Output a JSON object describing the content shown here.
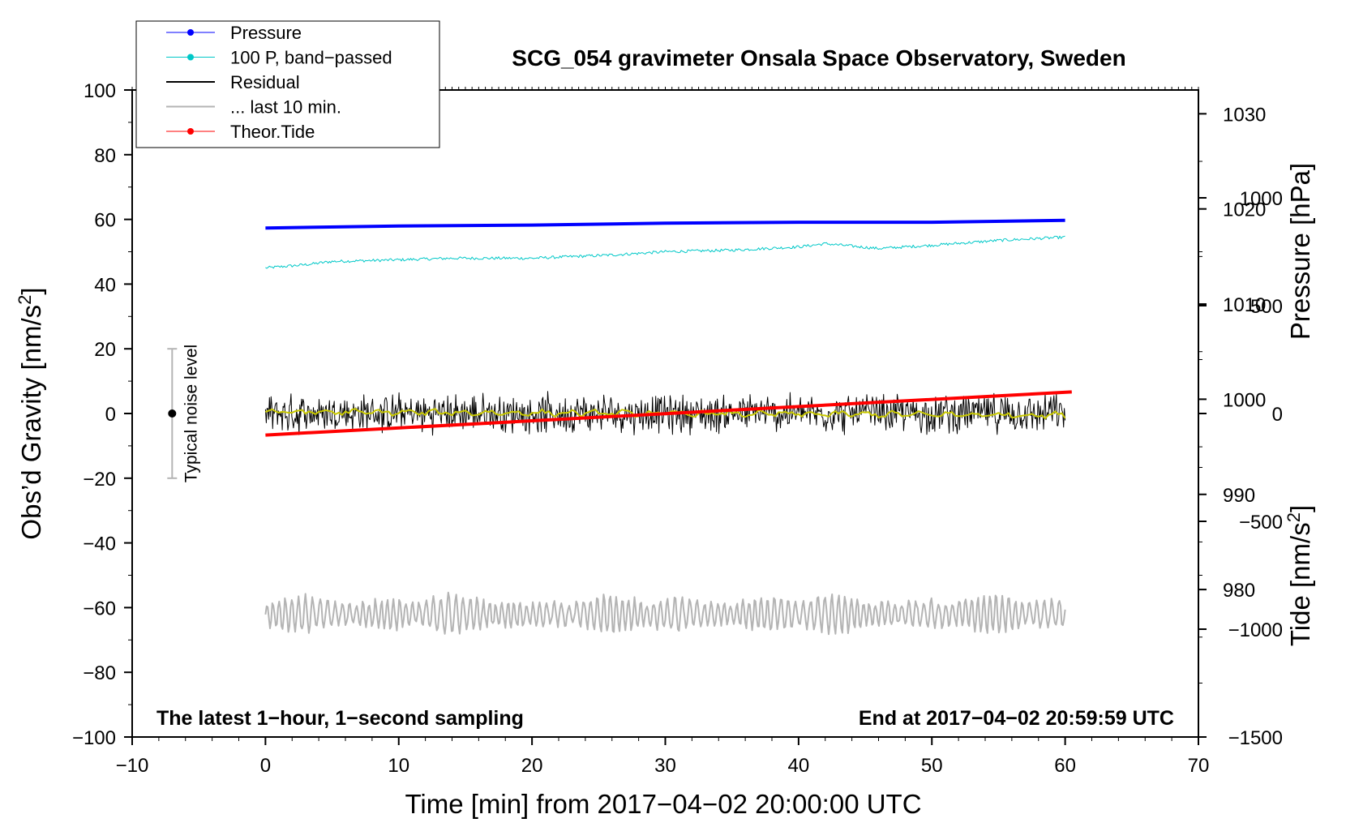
{
  "chart_data": {
    "type": "line",
    "title": "SCG_054 gravimeter Onsala Space Observatory, Sweden",
    "xlabel": "Time [min] from 2017−04−02 20:00:00 UTC",
    "ylabel": "Obs’d Gravity [nm/s²]",
    "ylabel_main": "Obs’d Gravity [nm/s",
    "ylabel_sup": "2",
    "ylabel_end": "]",
    "y2label_pressure": "Pressure [hPa]",
    "y3label_main": "Tide [nm/s",
    "y3label_sup": "2",
    "y3label_end": "]",
    "xlim": [
      -10,
      70
    ],
    "ylim": [
      -100,
      100
    ],
    "pressure_lim": [
      964.5,
      1032.5
    ],
    "tide_lim": [
      -1500,
      1500
    ],
    "x_ticks": [
      "−10",
      "0",
      "10",
      "20",
      "30",
      "40",
      "50",
      "60",
      "70"
    ],
    "x_tick_values": [
      -10,
      0,
      10,
      20,
      30,
      40,
      50,
      60,
      70
    ],
    "y_ticks": [
      "100",
      "80",
      "60",
      "40",
      "20",
      "0",
      "−20",
      "−40",
      "−60",
      "−80",
      "−100"
    ],
    "y_tick_values": [
      100,
      80,
      60,
      40,
      20,
      0,
      -20,
      -40,
      -60,
      -80,
      -100
    ],
    "pressure_ticks": [
      "1030",
      "1020",
      "1010",
      "1000",
      "990",
      "980"
    ],
    "pressure_tick_values": [
      1030,
      1020,
      1010,
      1000,
      990,
      980
    ],
    "tide_ticks": [
      "1000",
      "500",
      "0",
      "−500",
      "−1000",
      "−1500"
    ],
    "tide_tick_values": [
      1000,
      500,
      0,
      -500,
      -1000,
      -1500
    ],
    "legend": [
      {
        "label": "Pressure",
        "color": "#0000ff",
        "marker": true
      },
      {
        "label": "100 P, band−passed",
        "color": "#00c8c8",
        "marker": true
      },
      {
        "label": "Residual",
        "color": "#000000",
        "marker": false
      },
      {
        "label": "... last 10 min.",
        "color": "#b4b4b4",
        "marker": false
      },
      {
        "label": "Theor.Tide",
        "color": "#ff0000",
        "marker": true
      }
    ],
    "legend_placement": "top-left",
    "noise_label": "Typical noise level",
    "noise_range": [
      -20,
      20
    ],
    "noise_x": -7,
    "note_left": "The latest 1−hour, 1−second sampling",
    "note_right": "End at 2017−04−02 20:59:59 UTC",
    "series": [
      {
        "name": "Pressure",
        "axis": "pressure",
        "color": "#0000ff",
        "x": [
          0,
          10,
          20,
          30,
          40,
          50,
          60
        ],
        "values": [
          1018.0,
          1018.2,
          1018.3,
          1018.5,
          1018.6,
          1018.6,
          1018.8
        ]
      },
      {
        "name": "100 P, band-passed",
        "axis": "gravity",
        "color": "#00c8c8",
        "x": [
          0,
          3,
          5,
          10,
          14,
          20,
          26,
          30,
          35,
          40,
          42,
          46,
          50,
          55,
          60
        ],
        "values": [
          45,
          46,
          47,
          47.5,
          48,
          48,
          49,
          50,
          50.5,
          51.5,
          52.5,
          51,
          52,
          53.5,
          54.5
        ]
      },
      {
        "name": "Residual",
        "axis": "gravity",
        "color": "#000000",
        "noise_amplitude": 8,
        "x": [
          0,
          60
        ],
        "values": [
          0,
          0
        ]
      },
      {
        "name": "Residual smoothed",
        "axis": "gravity",
        "color": "#c8c800",
        "x": [
          0,
          60
        ],
        "values": [
          0.5,
          -0.5
        ]
      },
      {
        "name": "... last 10 min.",
        "axis": "gravity",
        "color": "#b4b4b4",
        "offset": -62,
        "amplitude": 6,
        "x": [
          0,
          60
        ],
        "values": [
          -62,
          -62
        ]
      },
      {
        "name": "Theor.Tide",
        "axis": "tide",
        "color": "#ff0000",
        "x": [
          0,
          60.5
        ],
        "values": [
          -100,
          100
        ]
      }
    ]
  }
}
